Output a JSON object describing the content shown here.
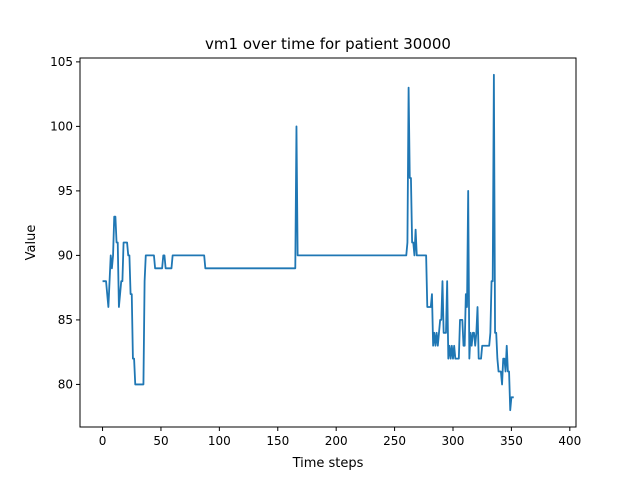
{
  "chart_data": {
    "type": "line",
    "title": "vm1 over time for patient 30000",
    "xlabel": "Time steps",
    "ylabel": "Value",
    "xlim": [
      -19.3,
      405.3
    ],
    "ylim": [
      76.7,
      105.3
    ],
    "xticks": [
      0,
      50,
      100,
      150,
      200,
      250,
      300,
      350,
      400
    ],
    "yticks": [
      80,
      85,
      90,
      95,
      100,
      105
    ],
    "grid": false,
    "legend": "none",
    "series": [
      {
        "color": "#1f77b4",
        "points": [
          [
            0,
            88
          ],
          [
            2,
            88
          ],
          [
            3,
            88
          ],
          [
            4,
            87
          ],
          [
            5,
            86
          ],
          [
            6,
            88
          ],
          [
            7,
            90
          ],
          [
            8,
            89
          ],
          [
            9,
            90
          ],
          [
            10,
            93
          ],
          [
            11,
            93
          ],
          [
            12,
            91
          ],
          [
            13,
            91
          ],
          [
            14,
            86
          ],
          [
            15,
            87
          ],
          [
            16,
            88
          ],
          [
            17,
            88
          ],
          [
            18,
            91
          ],
          [
            19,
            91
          ],
          [
            20,
            91
          ],
          [
            21,
            91
          ],
          [
            22,
            90
          ],
          [
            23,
            90
          ],
          [
            24,
            87
          ],
          [
            25,
            87
          ],
          [
            26,
            82
          ],
          [
            27,
            82
          ],
          [
            28,
            80
          ],
          [
            30,
            80
          ],
          [
            32,
            80
          ],
          [
            33,
            80
          ],
          [
            34,
            80
          ],
          [
            35,
            80
          ],
          [
            36,
            88
          ],
          [
            37,
            90
          ],
          [
            39,
            90
          ],
          [
            41,
            90
          ],
          [
            43,
            90
          ],
          [
            44,
            90
          ],
          [
            45,
            89
          ],
          [
            47,
            89
          ],
          [
            49,
            89
          ],
          [
            50,
            89
          ],
          [
            51,
            89
          ],
          [
            52,
            90
          ],
          [
            53,
            90
          ],
          [
            54,
            89
          ],
          [
            56,
            89
          ],
          [
            58,
            89
          ],
          [
            59,
            89
          ],
          [
            60,
            90
          ],
          [
            62,
            90
          ],
          [
            70,
            90
          ],
          [
            80,
            90
          ],
          [
            87,
            90
          ],
          [
            88,
            89
          ],
          [
            100,
            89
          ],
          [
            120,
            89
          ],
          [
            140,
            89
          ],
          [
            155,
            89
          ],
          [
            165,
            89
          ],
          [
            166,
            100
          ],
          [
            167,
            90
          ],
          [
            180,
            90
          ],
          [
            200,
            90
          ],
          [
            220,
            90
          ],
          [
            240,
            90
          ],
          [
            255,
            90
          ],
          [
            260,
            90
          ],
          [
            261,
            91
          ],
          [
            262,
            103
          ],
          [
            263,
            96
          ],
          [
            264,
            96
          ],
          [
            265,
            91
          ],
          [
            266,
            91
          ],
          [
            267,
            90
          ],
          [
            268,
            92
          ],
          [
            269,
            90
          ],
          [
            270,
            90
          ],
          [
            272,
            90
          ],
          [
            274,
            90
          ],
          [
            276,
            90
          ],
          [
            277,
            90
          ],
          [
            278,
            86
          ],
          [
            279,
            86
          ],
          [
            280,
            86
          ],
          [
            281,
            86
          ],
          [
            282,
            87
          ],
          [
            283,
            83
          ],
          [
            284,
            84
          ],
          [
            285,
            83
          ],
          [
            286,
            84
          ],
          [
            287,
            83
          ],
          [
            288,
            84
          ],
          [
            289,
            85
          ],
          [
            290,
            85
          ],
          [
            291,
            88
          ],
          [
            292,
            84
          ],
          [
            293,
            84
          ],
          [
            294,
            84
          ],
          [
            295,
            88
          ],
          [
            296,
            82
          ],
          [
            297,
            83
          ],
          [
            298,
            82
          ],
          [
            299,
            83
          ],
          [
            300,
            82
          ],
          [
            301,
            83
          ],
          [
            302,
            82
          ],
          [
            303,
            82
          ],
          [
            304,
            82
          ],
          [
            305,
            82
          ],
          [
            306,
            85
          ],
          [
            307,
            85
          ],
          [
            308,
            85
          ],
          [
            309,
            83
          ],
          [
            310,
            83
          ],
          [
            311,
            87
          ],
          [
            312,
            86
          ],
          [
            313,
            95
          ],
          [
            314,
            82
          ],
          [
            315,
            84
          ],
          [
            316,
            83
          ],
          [
            317,
            84
          ],
          [
            318,
            84
          ],
          [
            319,
            83
          ],
          [
            320,
            84
          ],
          [
            321,
            86
          ],
          [
            322,
            82
          ],
          [
            323,
            82
          ],
          [
            324,
            82
          ],
          [
            325,
            83
          ],
          [
            326,
            83
          ],
          [
            328,
            83
          ],
          [
            330,
            83
          ],
          [
            331,
            83
          ],
          [
            332,
            84
          ],
          [
            333,
            88
          ],
          [
            334,
            88
          ],
          [
            335,
            104
          ],
          [
            336,
            84
          ],
          [
            337,
            84
          ],
          [
            338,
            82
          ],
          [
            339,
            81
          ],
          [
            340,
            81
          ],
          [
            341,
            81
          ],
          [
            342,
            80
          ],
          [
            343,
            82
          ],
          [
            344,
            82
          ],
          [
            345,
            81
          ],
          [
            346,
            83
          ],
          [
            347,
            81
          ],
          [
            348,
            81
          ],
          [
            349,
            78
          ],
          [
            350,
            79
          ],
          [
            351,
            79
          ],
          [
            352,
            79
          ]
        ]
      }
    ]
  }
}
